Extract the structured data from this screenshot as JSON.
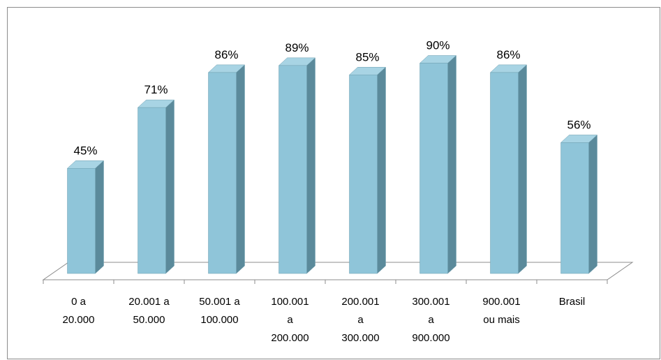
{
  "chart_data": {
    "type": "bar",
    "categories": [
      [
        "0 a",
        "20.000"
      ],
      [
        "20.001 a",
        "50.000"
      ],
      [
        "50.001 a",
        "100.000"
      ],
      [
        "100.001",
        "a",
        "200.000"
      ],
      [
        "200.001",
        "a",
        "300.000"
      ],
      [
        "300.001",
        "a",
        "900.000"
      ],
      [
        "900.001",
        "ou mais"
      ],
      [
        "Brasil"
      ]
    ],
    "values": [
      45,
      71,
      86,
      89,
      85,
      90,
      86,
      56
    ],
    "data_labels": [
      "45%",
      "71%",
      "86%",
      "89%",
      "85%",
      "90%",
      "86%",
      "56%"
    ],
    "ylim": [
      0,
      100
    ],
    "grid": false,
    "colors": {
      "bar_front": "#8fc5d9",
      "bar_side": "#5b8a9b",
      "bar_top": "#a8d4e4",
      "bar_edge": "#6f9fb0",
      "floor": "#ffffff",
      "floor_edge": "#8c8c8c"
    }
  }
}
